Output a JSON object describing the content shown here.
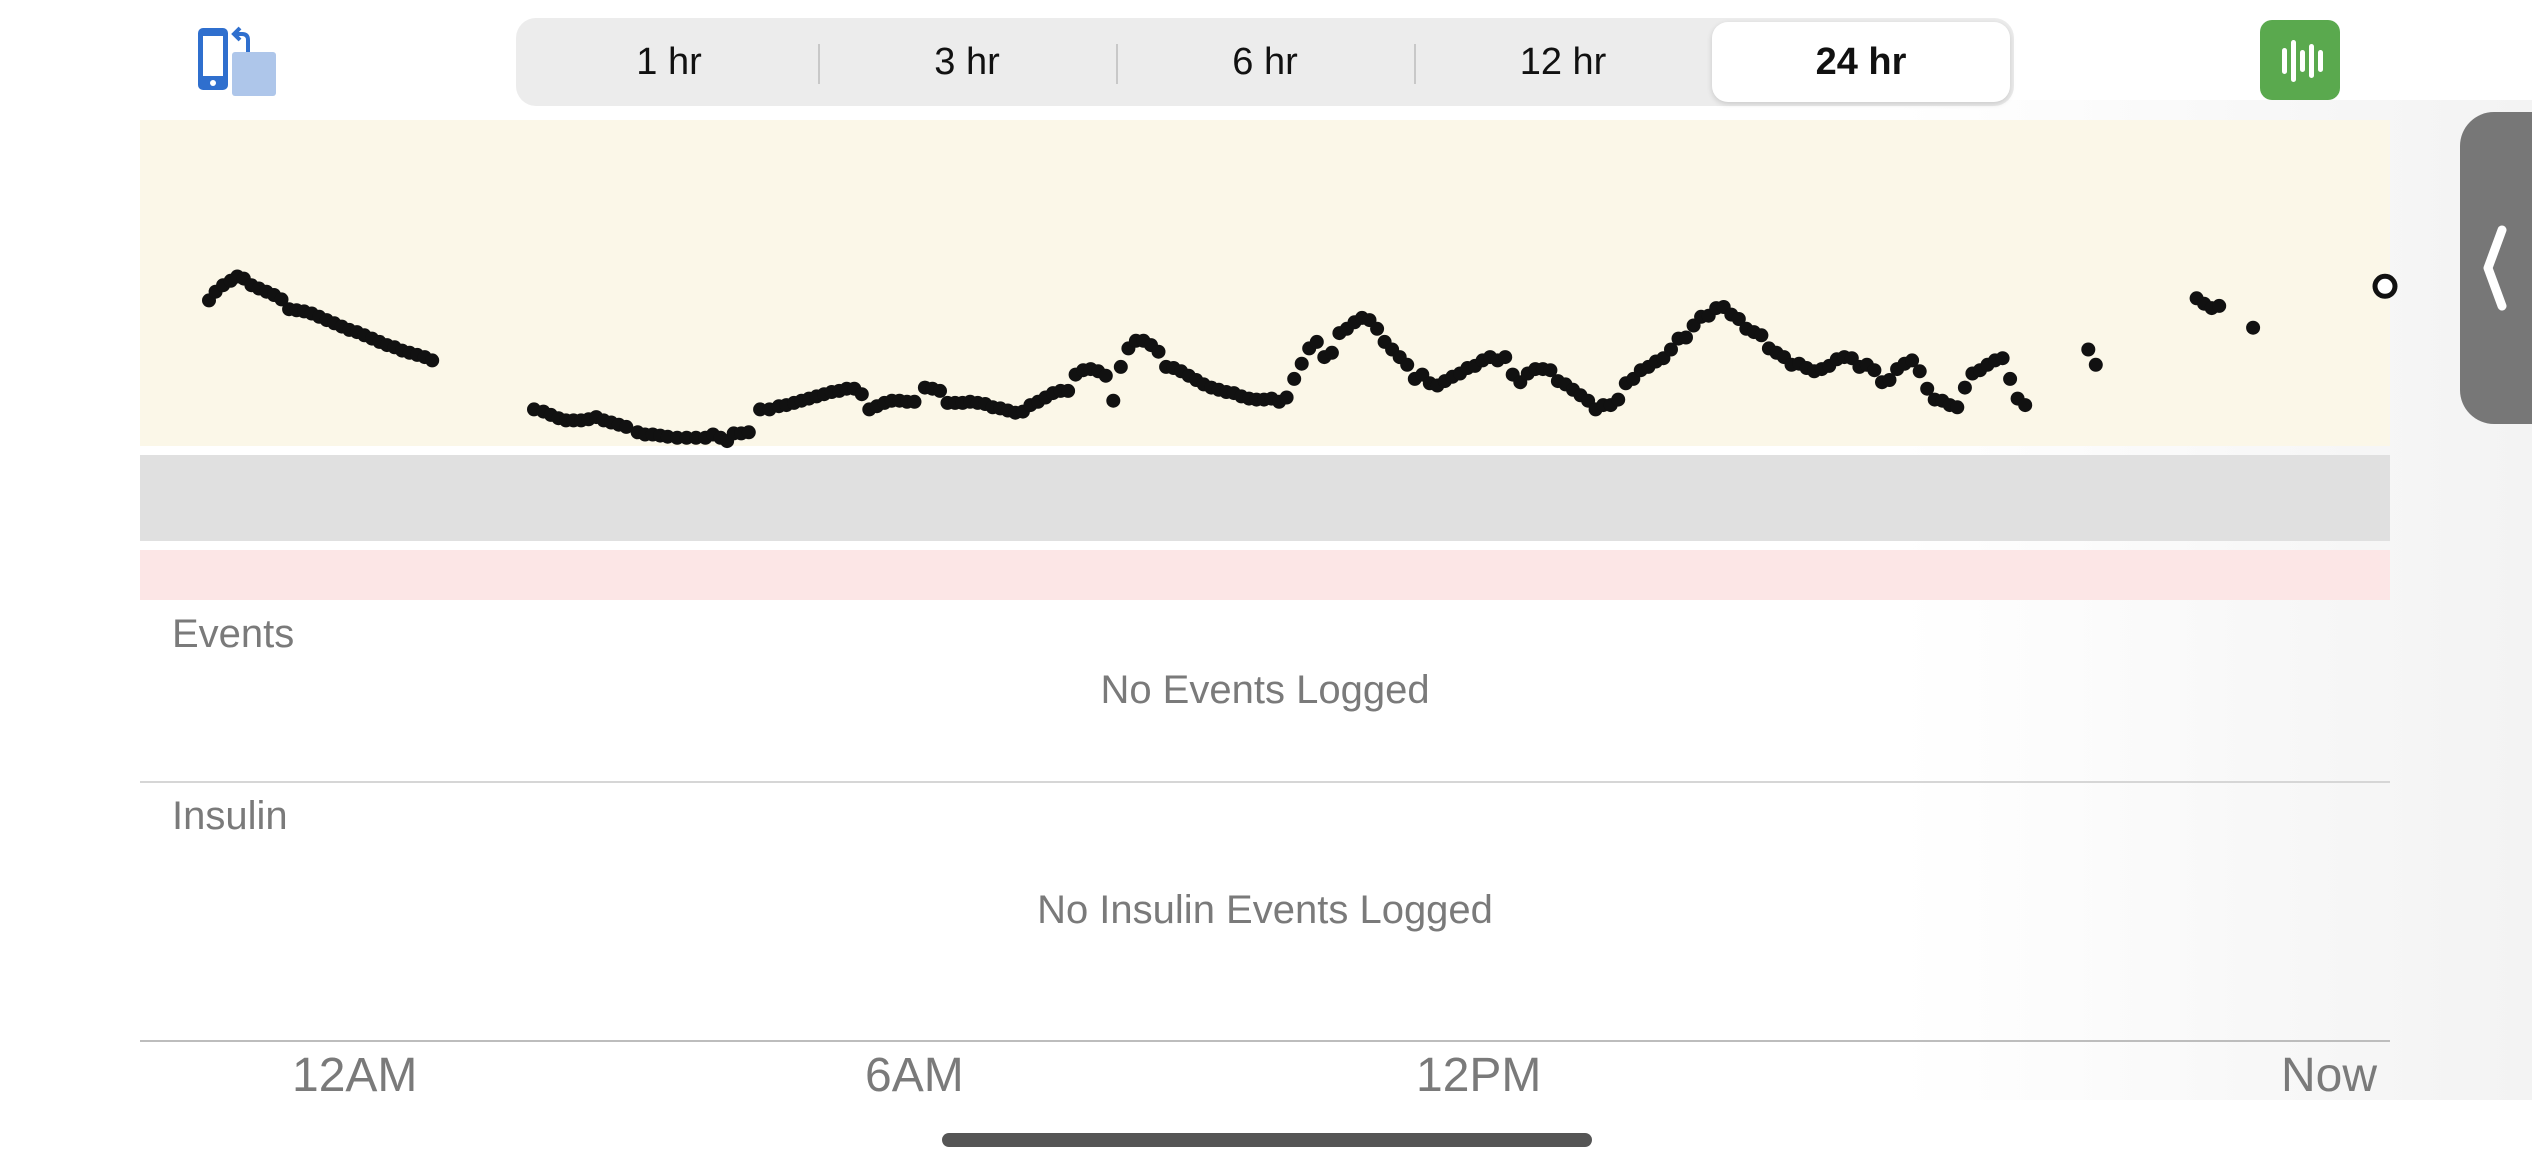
{
  "toolbar": {
    "rotate_icon": "rotate-device-icon",
    "stats_icon": "bar-chart-icon",
    "accent_green": "#5aa94e",
    "ranges": [
      {
        "label": "1 hr",
        "selected": false
      },
      {
        "label": "3 hr",
        "selected": false
      },
      {
        "label": "6 hr",
        "selected": false
      },
      {
        "label": "12 hr",
        "selected": false
      },
      {
        "label": "24 hr",
        "selected": true
      }
    ]
  },
  "side_panel": {
    "icon": "chevron-left-icon"
  },
  "chart_data": {
    "type": "scatter",
    "title": "",
    "xlabel": "",
    "ylabel": "",
    "x_unit": "hours since 12AM",
    "xlim": [
      -2.3,
      21.8
    ],
    "x_ticks": [
      {
        "label": "12AM",
        "x": 0
      },
      {
        "label": "6AM",
        "x": 6
      },
      {
        "label": "12PM",
        "x": 12
      },
      {
        "label": "Now",
        "x": 21.8
      }
    ],
    "zones": [
      {
        "name": "high",
        "color": "#fbf7e8"
      },
      {
        "name": "target",
        "color": "#e0e0e0"
      },
      {
        "name": "low",
        "color": "#fce6e6"
      }
    ],
    "marker_color": "#111111",
    "series": [
      {
        "points": [
          [
            -1.55,
            185
          ],
          [
            -1.48,
            193
          ],
          [
            -1.4,
            199
          ],
          [
            -1.32,
            203
          ],
          [
            -1.25,
            207
          ],
          [
            -1.18,
            205
          ],
          [
            -1.1,
            199
          ],
          [
            -1.02,
            196
          ],
          [
            -0.94,
            193
          ],
          [
            -0.86,
            190
          ],
          [
            -0.78,
            186
          ],
          [
            -0.7,
            177
          ],
          [
            -0.62,
            176
          ],
          [
            -0.54,
            175
          ],
          [
            -0.46,
            173
          ],
          [
            -0.38,
            170
          ],
          [
            -0.3,
            167
          ],
          [
            -0.22,
            164
          ],
          [
            -0.14,
            161
          ],
          [
            -0.06,
            158
          ],
          [
            0.02,
            156
          ],
          [
            0.1,
            153
          ],
          [
            0.18,
            150
          ],
          [
            0.26,
            147
          ],
          [
            0.34,
            144
          ],
          [
            0.42,
            142
          ],
          [
            0.5,
            139
          ],
          [
            0.58,
            137
          ],
          [
            0.66,
            135
          ],
          [
            0.74,
            133
          ],
          [
            0.82,
            130
          ],
          [
            1.9,
            85
          ],
          [
            2.0,
            83
          ],
          [
            2.08,
            80
          ],
          [
            2.16,
            77
          ],
          [
            2.24,
            75
          ],
          [
            2.32,
            75
          ],
          [
            2.4,
            75
          ],
          [
            2.48,
            76
          ],
          [
            2.56,
            78
          ],
          [
            2.64,
            75
          ],
          [
            2.72,
            73
          ],
          [
            2.8,
            71
          ],
          [
            2.88,
            69
          ],
          [
            3.0,
            64
          ],
          [
            3.08,
            62
          ],
          [
            3.16,
            62
          ],
          [
            3.24,
            61
          ],
          [
            3.32,
            60
          ],
          [
            3.42,
            59
          ],
          [
            3.52,
            59
          ],
          [
            3.62,
            59
          ],
          [
            3.72,
            59
          ],
          [
            3.8,
            62
          ],
          [
            3.88,
            59
          ],
          [
            3.95,
            56
          ],
          [
            4.02,
            63
          ],
          [
            4.1,
            63
          ],
          [
            4.18,
            64
          ],
          [
            4.3,
            85
          ],
          [
            4.4,
            85
          ],
          [
            4.5,
            88
          ],
          [
            4.58,
            89
          ],
          [
            4.66,
            91
          ],
          [
            4.74,
            93
          ],
          [
            4.82,
            95
          ],
          [
            4.9,
            97
          ],
          [
            4.98,
            99
          ],
          [
            5.06,
            101
          ],
          [
            5.14,
            102
          ],
          [
            5.22,
            104
          ],
          [
            5.3,
            104
          ],
          [
            5.38,
            99
          ],
          [
            5.46,
            85
          ],
          [
            5.54,
            88
          ],
          [
            5.62,
            91
          ],
          [
            5.7,
            93
          ],
          [
            5.78,
            93
          ],
          [
            5.86,
            92
          ],
          [
            5.94,
            92
          ],
          [
            6.05,
            105
          ],
          [
            6.13,
            104
          ],
          [
            6.21,
            102
          ],
          [
            6.29,
            91
          ],
          [
            6.37,
            91
          ],
          [
            6.45,
            91
          ],
          [
            6.53,
            92
          ],
          [
            6.61,
            91
          ],
          [
            6.69,
            90
          ],
          [
            6.77,
            87
          ],
          [
            6.85,
            86
          ],
          [
            6.93,
            84
          ],
          [
            7.01,
            82
          ],
          [
            7.09,
            83
          ],
          [
            7.17,
            89
          ],
          [
            7.25,
            92
          ],
          [
            7.33,
            96
          ],
          [
            7.41,
            100
          ],
          [
            7.49,
            102
          ],
          [
            7.57,
            102
          ],
          [
            7.65,
            117
          ],
          [
            7.73,
            121
          ],
          [
            7.81,
            122
          ],
          [
            7.89,
            120
          ],
          [
            7.97,
            116
          ],
          [
            8.05,
            93
          ],
          [
            8.13,
            124
          ],
          [
            8.21,
            141
          ],
          [
            8.29,
            148
          ],
          [
            8.37,
            148
          ],
          [
            8.45,
            144
          ],
          [
            8.53,
            138
          ],
          [
            8.61,
            124
          ],
          [
            8.69,
            123
          ],
          [
            8.77,
            120
          ],
          [
            8.85,
            116
          ],
          [
            8.93,
            112
          ],
          [
            9.01,
            108
          ],
          [
            9.09,
            105
          ],
          [
            9.17,
            103
          ],
          [
            9.25,
            101
          ],
          [
            9.33,
            100
          ],
          [
            9.41,
            97
          ],
          [
            9.49,
            95
          ],
          [
            9.57,
            94
          ],
          [
            9.65,
            94
          ],
          [
            9.73,
            95
          ],
          [
            9.81,
            92
          ],
          [
            9.89,
            96
          ],
          [
            9.97,
            113
          ],
          [
            10.05,
            127
          ],
          [
            10.13,
            141
          ],
          [
            10.21,
            147
          ],
          [
            10.29,
            133
          ],
          [
            10.37,
            137
          ],
          [
            10.45,
            155
          ],
          [
            10.53,
            159
          ],
          [
            10.61,
            165
          ],
          [
            10.69,
            169
          ],
          [
            10.77,
            167
          ],
          [
            10.85,
            159
          ],
          [
            10.93,
            147
          ],
          [
            11.01,
            140
          ],
          [
            11.09,
            133
          ],
          [
            11.17,
            126
          ],
          [
            11.25,
            113
          ],
          [
            11.33,
            117
          ],
          [
            11.41,
            109
          ],
          [
            11.49,
            107
          ],
          [
            11.57,
            111
          ],
          [
            11.65,
            115
          ],
          [
            11.73,
            118
          ],
          [
            11.81,
            123
          ],
          [
            11.89,
            125
          ],
          [
            11.97,
            130
          ],
          [
            12.05,
            133
          ],
          [
            12.13,
            130
          ],
          [
            12.21,
            133
          ],
          [
            12.29,
            117
          ],
          [
            12.37,
            110
          ],
          [
            12.45,
            118
          ],
          [
            12.53,
            122
          ],
          [
            12.61,
            122
          ],
          [
            12.69,
            121
          ],
          [
            12.77,
            111
          ],
          [
            12.85,
            108
          ],
          [
            12.93,
            103
          ],
          [
            13.01,
            98
          ],
          [
            13.09,
            93
          ],
          [
            13.17,
            85
          ],
          [
            13.25,
            89
          ],
          [
            13.33,
            89
          ],
          [
            13.41,
            94
          ],
          [
            13.49,
            109
          ],
          [
            13.57,
            113
          ],
          [
            13.65,
            121
          ],
          [
            13.73,
            124
          ],
          [
            13.81,
            129
          ],
          [
            13.89,
            132
          ],
          [
            13.97,
            140
          ],
          [
            14.05,
            150
          ],
          [
            14.13,
            151
          ],
          [
            14.21,
            162
          ],
          [
            14.29,
            170
          ],
          [
            14.37,
            171
          ],
          [
            14.45,
            178
          ],
          [
            14.53,
            179
          ],
          [
            14.61,
            172
          ],
          [
            14.69,
            168
          ],
          [
            14.77,
            159
          ],
          [
            14.85,
            156
          ],
          [
            14.93,
            153
          ],
          [
            15.01,
            141
          ],
          [
            15.09,
            137
          ],
          [
            15.17,
            133
          ],
          [
            15.25,
            126
          ],
          [
            15.33,
            127
          ],
          [
            15.41,
            123
          ],
          [
            15.49,
            120
          ],
          [
            15.57,
            122
          ],
          [
            15.65,
            125
          ],
          [
            15.73,
            131
          ],
          [
            15.81,
            133
          ],
          [
            15.89,
            132
          ],
          [
            15.97,
            124
          ],
          [
            16.05,
            126
          ],
          [
            16.13,
            121
          ],
          [
            16.21,
            110
          ],
          [
            16.29,
            112
          ],
          [
            16.37,
            122
          ],
          [
            16.45,
            127
          ],
          [
            16.53,
            130
          ],
          [
            16.61,
            120
          ],
          [
            16.69,
            104
          ],
          [
            16.77,
            94
          ],
          [
            16.85,
            93
          ],
          [
            16.93,
            89
          ],
          [
            17.01,
            87
          ],
          [
            17.09,
            105
          ],
          [
            17.17,
            118
          ],
          [
            17.25,
            121
          ],
          [
            17.33,
            126
          ],
          [
            17.41,
            130
          ],
          [
            17.49,
            132
          ],
          [
            17.57,
            113
          ],
          [
            17.65,
            95
          ],
          [
            17.73,
            89
          ],
          [
            18.4,
            140
          ],
          [
            18.48,
            126
          ],
          [
            19.55,
            187
          ],
          [
            19.63,
            182
          ],
          [
            19.71,
            178
          ],
          [
            19.79,
            180
          ],
          [
            20.15,
            160
          ]
        ]
      }
    ],
    "current_point": [
      21.55,
      198
    ]
  },
  "events": {
    "label": "Events",
    "empty_message": "No Events Logged"
  },
  "insulin": {
    "label": "Insulin",
    "empty_message": "No Insulin Events Logged"
  }
}
